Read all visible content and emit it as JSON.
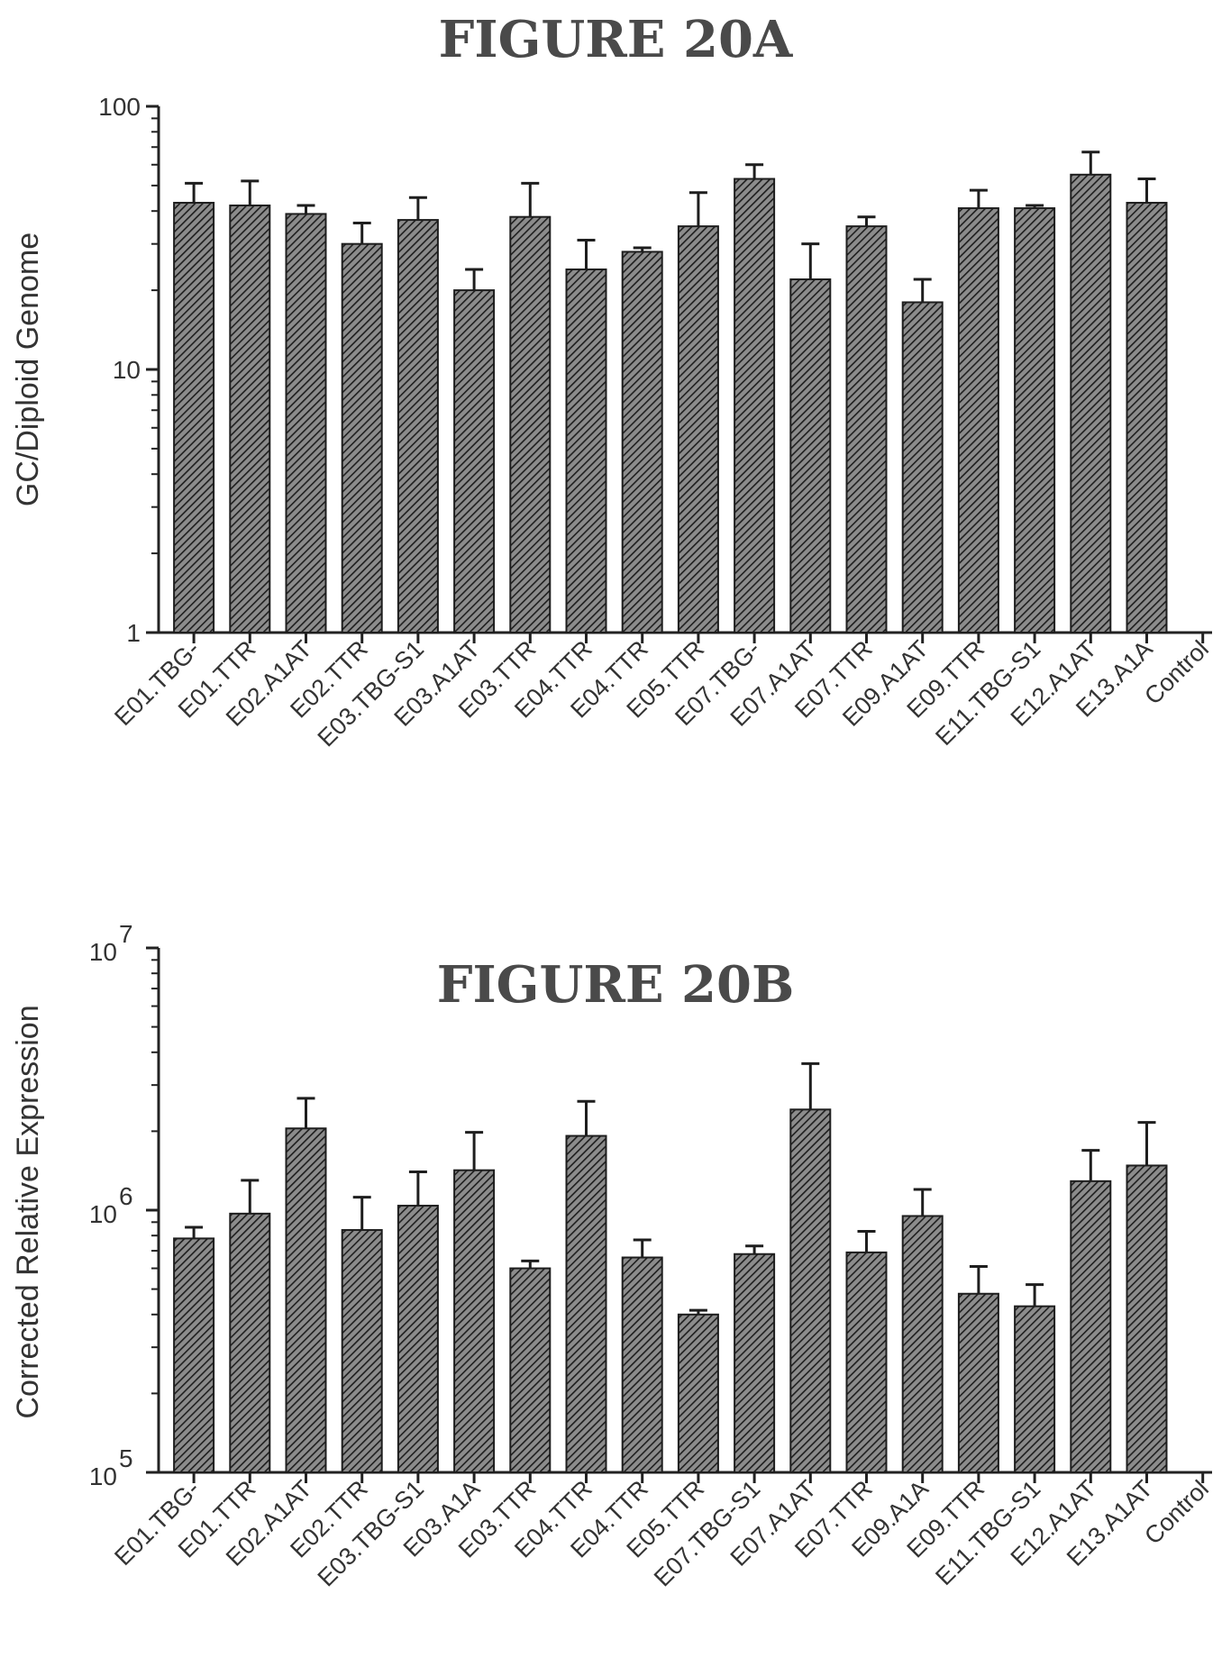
{
  "chart_data": [
    {
      "type": "bar",
      "title": "FIGURE 20A",
      "xlabel": "",
      "ylabel": "GC/Diploid Genome",
      "yscale": "log",
      "ylim": [
        1,
        100
      ],
      "yticks": [
        {
          "value": 1,
          "label": "1"
        },
        {
          "value": 10,
          "label": "10"
        },
        {
          "value": 100,
          "label": "100"
        }
      ],
      "categories": [
        "E01.TBG-",
        "E01.TTR",
        "E02.A1AT",
        "E02.TTR",
        "E03.TBG-S1",
        "E03.A1AT",
        "E03.TTR",
        "E04.TTR",
        "E04.TTR",
        "E05.TTR",
        "E07.TBG-",
        "E07.A1AT",
        "E07.TTR",
        "E09.A1AT",
        "E09.TTR",
        "E11.TBG-S1",
        "E12.A1AT",
        "E13.A1A",
        "Control"
      ],
      "values": [
        43,
        42,
        39,
        30,
        37,
        20,
        38,
        24,
        28,
        35,
        53,
        22,
        35,
        18,
        41,
        41,
        55,
        43,
        null
      ],
      "error": [
        8,
        10,
        3,
        6,
        8,
        4,
        13,
        7,
        1,
        12,
        7,
        8,
        3,
        4,
        7,
        1,
        12,
        10,
        null
      ],
      "grid": false
    },
    {
      "type": "bar",
      "title": "FIGURE 20B",
      "xlabel": "",
      "ylabel": "Corrected Relative Expression",
      "yscale": "log",
      "ylim": [
        100000,
        10000000
      ],
      "yticks": [
        {
          "value": 100000,
          "base": "10",
          "exp": "5"
        },
        {
          "value": 1000000,
          "base": "10",
          "exp": "6"
        },
        {
          "value": 10000000,
          "base": "10",
          "exp": "7"
        }
      ],
      "categories": [
        "E01.TBG-",
        "E01.TTR",
        "E02.A1AT",
        "E02.TTR",
        "E03.TBG-S1",
        "E03.A1A",
        "E03.TTR",
        "E04.TTR",
        "E04.TTR",
        "E05.TTR",
        "E07.TBG-S1",
        "E07.A1AT",
        "E07.TTR",
        "E09.A1A",
        "E09.TTR",
        "E11.TBG-S1",
        "E12.A1AT",
        "E13.A1AT",
        "Control"
      ],
      "values": [
        780000,
        970000,
        2050000,
        840000,
        1040000,
        1420000,
        600000,
        1920000,
        660000,
        400000,
        680000,
        2420000,
        690000,
        950000,
        480000,
        430000,
        1290000,
        1480000,
        null
      ],
      "error": [
        80000,
        330000,
        620000,
        280000,
        360000,
        560000,
        40000,
        680000,
        110000,
        15000,
        50000,
        1200000,
        140000,
        250000,
        130000,
        90000,
        400000,
        680000,
        null
      ],
      "grid": false
    }
  ]
}
